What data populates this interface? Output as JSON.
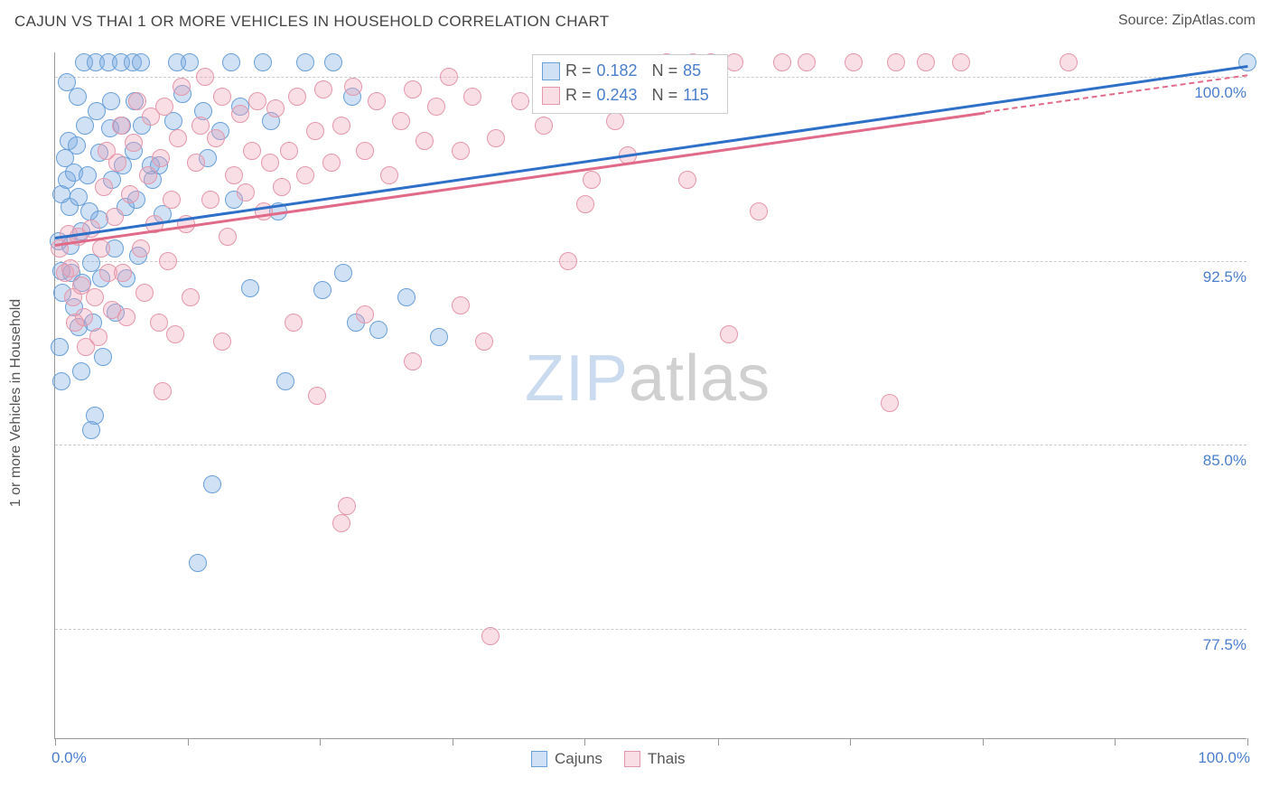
{
  "title": "CAJUN VS THAI 1 OR MORE VEHICLES IN HOUSEHOLD CORRELATION CHART",
  "source_label": "Source: ",
  "source_value": "ZipAtlas.com",
  "watermark": {
    "part1": "ZIP",
    "part2": "atlas"
  },
  "y_axis_title": "1 or more Vehicles in Household",
  "chart": {
    "type": "scatter",
    "background_color": "#ffffff",
    "grid_color": "#cccccc",
    "axis_color": "#999999",
    "tick_label_color": "#4a7ecc",
    "xlim": [
      0,
      100
    ],
    "ylim": [
      73,
      101
    ],
    "x_ticks": [
      0,
      11.1,
      22.2,
      33.3,
      44.4,
      55.6,
      66.7,
      77.8,
      88.9,
      100
    ],
    "x_tick_labels": {
      "0": "0.0%",
      "100": "100.0%"
    },
    "y_ticks": [
      77.5,
      85.0,
      92.5,
      100.0
    ],
    "y_tick_labels": [
      "77.5%",
      "85.0%",
      "92.5%",
      "100.0%"
    ],
    "marker_radius": 10,
    "marker_stroke_width": 1.5,
    "trend_line_width": 3,
    "series": [
      {
        "name": "Cajuns",
        "fill": "rgba(120,170,225,0.35)",
        "stroke": "#6aa0d8",
        "trend_color": "#2e6fc8",
        "R": "0.182",
        "N": "85",
        "trend": {
          "x1": 0,
          "y1": 93.5,
          "x2": 100,
          "y2": 100.5
        },
        "points": [
          [
            0.3,
            93.3
          ],
          [
            0.5,
            95.2
          ],
          [
            0.8,
            96.7
          ],
          [
            0.5,
            92.1
          ],
          [
            0.6,
            91.2
          ],
          [
            0.4,
            89.0
          ],
          [
            0.5,
            87.6
          ],
          [
            1.2,
            94.7
          ],
          [
            1.3,
            93.1
          ],
          [
            1.0,
            95.8
          ],
          [
            1.1,
            97.4
          ],
          [
            1.6,
            96.1
          ],
          [
            1.4,
            92.0
          ],
          [
            1.6,
            90.6
          ],
          [
            1.9,
            99.2
          ],
          [
            1.8,
            97.2
          ],
          [
            2.0,
            95.1
          ],
          [
            2.2,
            93.7
          ],
          [
            2.3,
            91.6
          ],
          [
            2.0,
            89.8
          ],
          [
            2.2,
            88.0
          ],
          [
            2.4,
            100.6
          ],
          [
            2.5,
            98.0
          ],
          [
            2.7,
            96.0
          ],
          [
            2.9,
            94.5
          ],
          [
            3.0,
            92.4
          ],
          [
            3.2,
            90.0
          ],
          [
            3.3,
            86.2
          ],
          [
            3.4,
            100.6
          ],
          [
            3.5,
            98.6
          ],
          [
            3.7,
            96.9
          ],
          [
            3.7,
            94.2
          ],
          [
            3.9,
            91.8
          ],
          [
            4.0,
            88.6
          ],
          [
            3.0,
            85.6
          ],
          [
            4.5,
            100.6
          ],
          [
            4.7,
            99.0
          ],
          [
            4.6,
            97.9
          ],
          [
            4.8,
            95.8
          ],
          [
            5.0,
            93.0
          ],
          [
            5.1,
            90.4
          ],
          [
            5.5,
            100.6
          ],
          [
            5.6,
            98.0
          ],
          [
            5.7,
            96.4
          ],
          [
            5.9,
            94.7
          ],
          [
            6.0,
            91.8
          ],
          [
            6.5,
            100.6
          ],
          [
            6.7,
            99.0
          ],
          [
            6.6,
            97.0
          ],
          [
            6.8,
            95.0
          ],
          [
            7.0,
            92.7
          ],
          [
            7.2,
            100.6
          ],
          [
            7.3,
            98.0
          ],
          [
            8.0,
            96.4
          ],
          [
            8.2,
            95.8
          ],
          [
            8.7,
            96.4
          ],
          [
            9.9,
            98.2
          ],
          [
            9.0,
            94.4
          ],
          [
            10.2,
            100.6
          ],
          [
            10.7,
            99.3
          ],
          [
            11.3,
            100.6
          ],
          [
            12.4,
            98.6
          ],
          [
            12.8,
            96.7
          ],
          [
            13.9,
            97.8
          ],
          [
            14.8,
            100.6
          ],
          [
            13.2,
            83.4
          ],
          [
            15.5,
            98.8
          ],
          [
            15.0,
            95.0
          ],
          [
            16.4,
            91.4
          ],
          [
            17.4,
            100.6
          ],
          [
            18.1,
            98.2
          ],
          [
            18.7,
            94.5
          ],
          [
            19.3,
            87.6
          ],
          [
            21.0,
            100.6
          ],
          [
            22.4,
            91.3
          ],
          [
            23.3,
            100.6
          ],
          [
            24.9,
            99.2
          ],
          [
            24.2,
            92.0
          ],
          [
            25.2,
            90.0
          ],
          [
            27.1,
            89.7
          ],
          [
            29.5,
            91.0
          ],
          [
            32.2,
            89.4
          ],
          [
            12.0,
            80.2
          ],
          [
            1.0,
            99.8
          ],
          [
            100,
            100.6
          ]
        ]
      },
      {
        "name": "Thais",
        "fill": "rgba(240,160,180,0.35)",
        "stroke": "#e498ab",
        "trend_color": "#e06a88",
        "R": "0.243",
        "N": "115",
        "trend": {
          "x1": 0,
          "y1": 93.2,
          "x2": 78,
          "y2": 98.6
        },
        "trend_dash": {
          "x1": 78,
          "y1": 98.6,
          "x2": 100,
          "y2": 100.1
        },
        "points": [
          [
            0.4,
            93.0
          ],
          [
            0.8,
            92.0
          ],
          [
            1.1,
            93.6
          ],
          [
            1.3,
            92.2
          ],
          [
            1.5,
            91.0
          ],
          [
            1.7,
            90.0
          ],
          [
            2.0,
            93.5
          ],
          [
            2.2,
            91.5
          ],
          [
            2.4,
            90.2
          ],
          [
            2.6,
            89.0
          ],
          [
            3.0,
            93.8
          ],
          [
            3.3,
            91.0
          ],
          [
            3.6,
            89.4
          ],
          [
            3.9,
            93.0
          ],
          [
            4.1,
            95.5
          ],
          [
            4.3,
            97.0
          ],
          [
            4.5,
            92.0
          ],
          [
            4.8,
            90.5
          ],
          [
            5.0,
            94.3
          ],
          [
            5.2,
            96.5
          ],
          [
            5.5,
            98.0
          ],
          [
            5.7,
            92.0
          ],
          [
            6.0,
            90.2
          ],
          [
            6.3,
            95.2
          ],
          [
            6.6,
            97.3
          ],
          [
            6.9,
            99.0
          ],
          [
            7.2,
            93.0
          ],
          [
            7.5,
            91.2
          ],
          [
            7.8,
            96.0
          ],
          [
            8.0,
            98.4
          ],
          [
            8.3,
            94.0
          ],
          [
            8.7,
            90.0
          ],
          [
            8.9,
            96.7
          ],
          [
            9.2,
            98.8
          ],
          [
            9.5,
            92.5
          ],
          [
            9.8,
            95.0
          ],
          [
            10.1,
            89.5
          ],
          [
            10.3,
            97.5
          ],
          [
            10.6,
            99.6
          ],
          [
            11.0,
            94.0
          ],
          [
            11.4,
            91.0
          ],
          [
            11.8,
            96.5
          ],
          [
            12.2,
            98.0
          ],
          [
            12.6,
            100.0
          ],
          [
            13.0,
            95.0
          ],
          [
            13.5,
            97.5
          ],
          [
            14.0,
            99.2
          ],
          [
            14.5,
            93.5
          ],
          [
            15.0,
            96.0
          ],
          [
            15.5,
            98.5
          ],
          [
            16.0,
            95.3
          ],
          [
            16.5,
            97.0
          ],
          [
            17.0,
            99.0
          ],
          [
            17.5,
            94.5
          ],
          [
            18.0,
            96.5
          ],
          [
            18.5,
            98.7
          ],
          [
            19.0,
            95.5
          ],
          [
            19.6,
            97.0
          ],
          [
            20.3,
            99.2
          ],
          [
            21.0,
            96.0
          ],
          [
            21.8,
            97.8
          ],
          [
            22.5,
            99.5
          ],
          [
            23.2,
            96.5
          ],
          [
            24.0,
            98.0
          ],
          [
            25.0,
            99.6
          ],
          [
            26.0,
            97.0
          ],
          [
            27.0,
            99.0
          ],
          [
            28.0,
            96.0
          ],
          [
            29.0,
            98.2
          ],
          [
            30.0,
            99.5
          ],
          [
            31.0,
            97.4
          ],
          [
            32.0,
            98.8
          ],
          [
            33.0,
            100.0
          ],
          [
            34.0,
            97.0
          ],
          [
            35.0,
            99.2
          ],
          [
            37.0,
            97.5
          ],
          [
            39.0,
            99.0
          ],
          [
            41.0,
            98.0
          ],
          [
            44.0,
            99.5
          ],
          [
            47.0,
            98.2
          ],
          [
            9.0,
            87.2
          ],
          [
            14.0,
            89.2
          ],
          [
            20.0,
            90.0
          ],
          [
            22.0,
            87.0
          ],
          [
            24.0,
            81.8
          ],
          [
            24.5,
            82.5
          ],
          [
            26.0,
            90.3
          ],
          [
            30.0,
            88.4
          ],
          [
            34.0,
            90.7
          ],
          [
            36.0,
            89.2
          ],
          [
            36.5,
            77.2
          ],
          [
            43.0,
            92.5
          ],
          [
            44.5,
            94.8
          ],
          [
            45.0,
            95.8
          ],
          [
            48.0,
            96.8
          ],
          [
            50.0,
            100.0
          ],
          [
            50.5,
            99.2
          ],
          [
            51.3,
            100.6
          ],
          [
            52.5,
            99.0
          ],
          [
            53.0,
            95.8
          ],
          [
            53.5,
            100.6
          ],
          [
            55.0,
            100.6
          ],
          [
            57.0,
            100.6
          ],
          [
            59.0,
            94.5
          ],
          [
            61.0,
            100.6
          ],
          [
            63.0,
            100.6
          ],
          [
            67.0,
            100.6
          ],
          [
            56.5,
            89.5
          ],
          [
            70.0,
            86.7
          ],
          [
            70.5,
            100.6
          ],
          [
            73.0,
            100.6
          ],
          [
            76.0,
            100.6
          ],
          [
            85.0,
            100.6
          ]
        ]
      }
    ]
  },
  "legend_top": {
    "R_label": "R =",
    "N_label": "N ="
  },
  "legend_bottom": {
    "items": [
      "Cajuns",
      "Thais"
    ]
  }
}
